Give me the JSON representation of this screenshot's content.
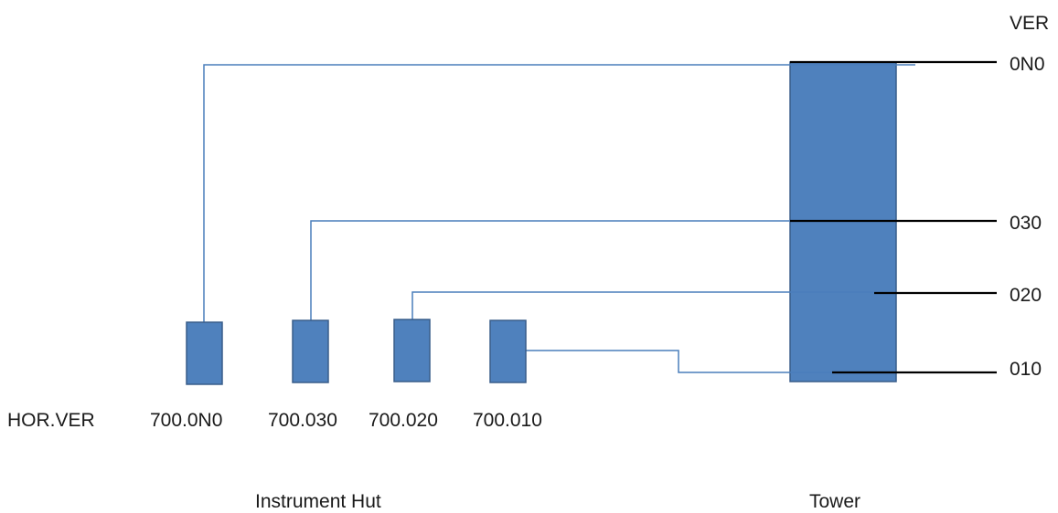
{
  "colors": {
    "fill": "#4f81bd",
    "stroke": "#385d8a",
    "connector": "#4a7ebb",
    "level_line": "#000000",
    "text": "#1a1a1a"
  },
  "labels": {
    "ver_header": "VER",
    "hor_ver_header": "HOR.VER",
    "instrument_hut": "Instrument Hut",
    "tower": "Tower"
  },
  "tower_levels": [
    {
      "id": "0n0",
      "label": "0N0"
    },
    {
      "id": "030",
      "label": "030"
    },
    {
      "id": "020",
      "label": "020"
    },
    {
      "id": "010",
      "label": "010"
    }
  ],
  "instruments": [
    {
      "id": "700-0n0",
      "label": "700.0N0",
      "level": "0N0"
    },
    {
      "id": "700-030",
      "label": "700.030",
      "level": "030"
    },
    {
      "id": "700-020",
      "label": "700.020",
      "level": "020"
    },
    {
      "id": "700-010",
      "label": "700.010",
      "level": "010"
    }
  ]
}
